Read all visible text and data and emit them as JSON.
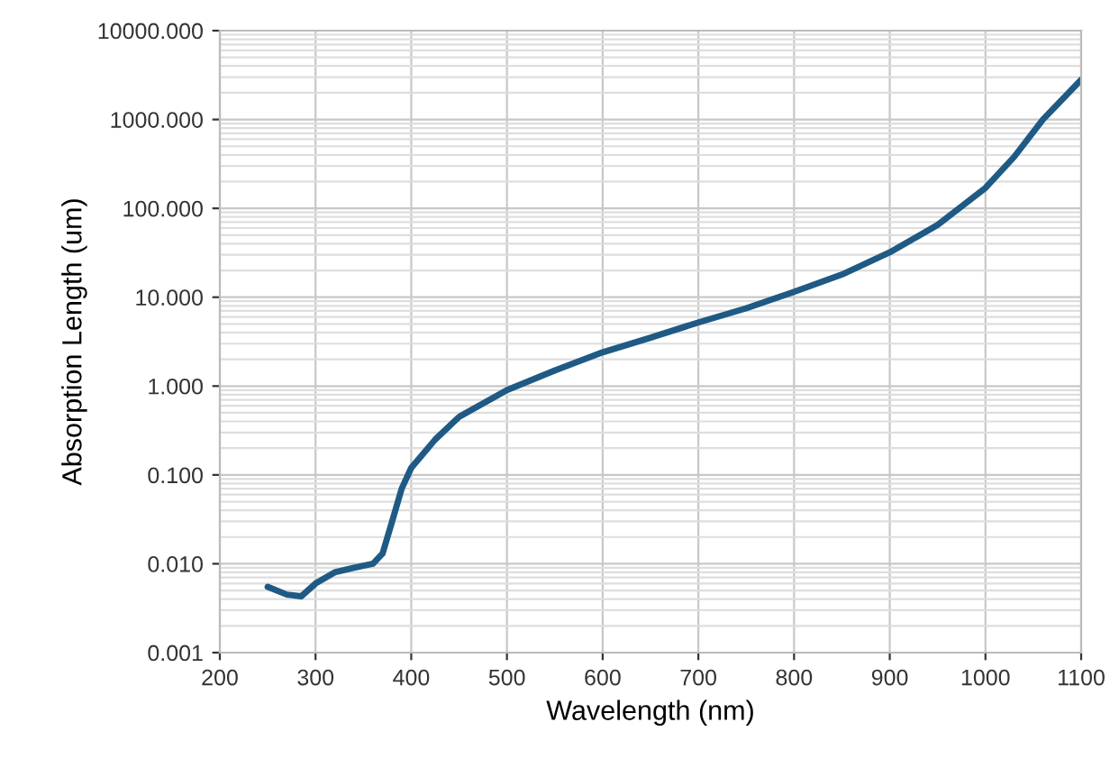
{
  "chart_data": {
    "type": "line",
    "xlabel": "Wavelength (nm)",
    "ylabel": "Absorption Length (um)",
    "log": "y",
    "grid": true,
    "marker": "none",
    "line_style": "solid",
    "xlim": [
      200,
      1100
    ],
    "xticks": [
      200,
      300,
      400,
      500,
      600,
      700,
      800,
      900,
      1000,
      1100
    ],
    "ylim": [
      0.001,
      10000
    ],
    "yticks": [
      {
        "value": 0.001,
        "label": "0.001"
      },
      {
        "value": 0.01,
        "label": "0.010"
      },
      {
        "value": 0.1,
        "label": "0.100"
      },
      {
        "value": 1,
        "label": "1.000"
      },
      {
        "value": 10,
        "label": "10.000"
      },
      {
        "value": 100,
        "label": "100.000"
      },
      {
        "value": 1000,
        "label": "1000.000"
      },
      {
        "value": 10000,
        "label": "10000.000"
      }
    ],
    "x": [
      250,
      270,
      285,
      300,
      320,
      340,
      360,
      370,
      380,
      390,
      400,
      425,
      450,
      500,
      550,
      600,
      650,
      700,
      750,
      800,
      850,
      900,
      950,
      1000,
      1030,
      1060,
      1100
    ],
    "series": [
      {
        "color": "#1f5a85",
        "values": [
          0.0055,
          0.0045,
          0.0043,
          0.006,
          0.008,
          0.009,
          0.01,
          0.013,
          0.03,
          0.07,
          0.12,
          0.25,
          0.45,
          0.9,
          1.5,
          2.4,
          3.5,
          5.2,
          7.5,
          11.5,
          18,
          32,
          65,
          170,
          380,
          1000,
          2800
        ]
      }
    ]
  }
}
